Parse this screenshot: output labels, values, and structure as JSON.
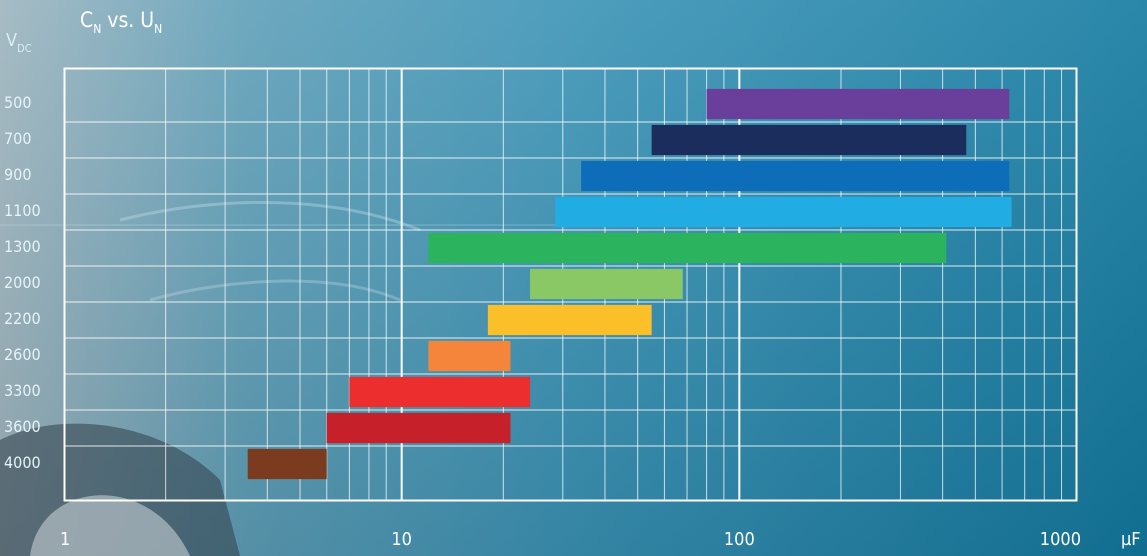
{
  "chart_data": {
    "type": "bar",
    "orientation": "horizontal-range",
    "title": "C",
    "title_sub": "N",
    "title_mid": " vs. U",
    "title_sub2": "N",
    "ylabel": "V",
    "ylabel_sub": "DC",
    "xlabel": "µF",
    "xscale": "log",
    "xlim": [
      1,
      1000
    ],
    "grid": true,
    "categories": [
      "500",
      "700",
      "900",
      "1100",
      "1300",
      "2000",
      "2200",
      "2600",
      "3300",
      "3600",
      "4000"
    ],
    "x_ticks": [
      "1",
      "10",
      "100",
      "1000"
    ],
    "series": [
      {
        "values": [
          [
            80,
            630
          ],
          [
            55,
            470
          ],
          [
            34,
            630
          ],
          [
            28.5,
            640
          ],
          [
            12,
            410
          ],
          [
            24,
            68
          ],
          [
            18,
            55
          ],
          [
            12,
            21
          ],
          [
            7,
            24
          ],
          [
            6,
            21
          ],
          [
            3.5,
            6
          ]
        ]
      }
    ],
    "colors": [
      "#6a3f9b",
      "#1b2d5c",
      "#0e6db8",
      "#21ade4",
      "#2bb35e",
      "#8ac865",
      "#fbbf2a",
      "#f4853b",
      "#ec2e2e",
      "#c6202a",
      "#7a3b1e"
    ]
  }
}
